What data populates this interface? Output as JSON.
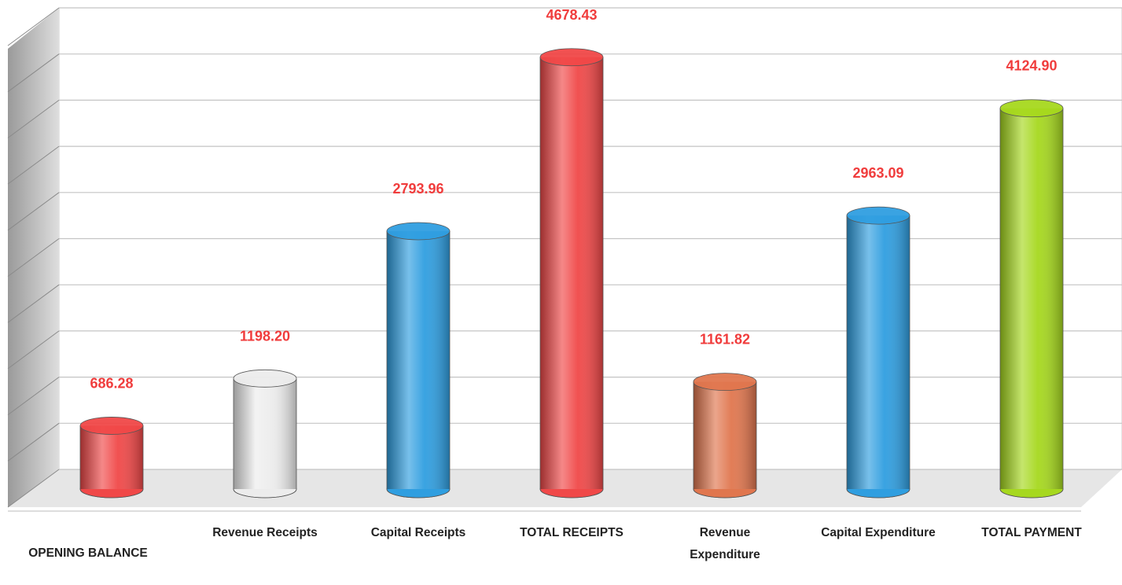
{
  "chart_data": {
    "type": "bar3d_cylinder",
    "categories": [
      "OPENING BALANCE",
      "Revenue Receipts",
      "Capital Receipts",
      "TOTAL RECEIPTS",
      "Revenue Expenditure",
      "Capital Expenditure",
      "TOTAL PAYMENT"
    ],
    "values": [
      686.28,
      1198.2,
      2793.96,
      4678.43,
      1161.82,
      2963.09,
      4124.9
    ],
    "value_labels": [
      "686.28",
      "1198.20",
      "2793.96",
      "4678.43",
      "1161.82",
      "2963.09",
      "4124.90"
    ],
    "colors": [
      "#f04848",
      "#ececec",
      "#2f9ee0",
      "#f04848",
      "#e0764e",
      "#2f9ee0",
      "#a6d81e"
    ],
    "ylim": [
      0,
      5000
    ],
    "yticks": [
      0,
      500,
      1000,
      1500,
      2000,
      2500,
      3000,
      3500,
      4000,
      4500,
      5000
    ],
    "grid": true
  }
}
